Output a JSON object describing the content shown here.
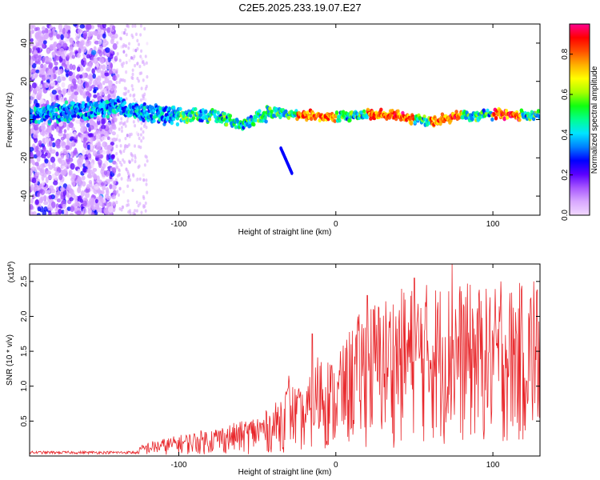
{
  "title": "C2E5.2025.233.19.07.E27",
  "colors": {
    "line": "#e8262a",
    "axis": "#000000",
    "colorbar": [
      "#f2d9ff",
      "#d8a8ff",
      "#a858ff",
      "#5a00ff",
      "#0000ff",
      "#0080ff",
      "#00e5ff",
      "#00ff90",
      "#10ff10",
      "#a8ff00",
      "#ffff00",
      "#ffb000",
      "#ff5000",
      "#ff0000",
      "#ff0090"
    ]
  },
  "chart_data": [
    {
      "type": "heatmap",
      "id": "spectrogram",
      "xlabel": "Height of straight line (km)",
      "ylabel": "Frequency (Hz)",
      "xlim": [
        -195,
        130
      ],
      "ylim": [
        -50,
        50
      ],
      "xticks": [
        -100,
        0,
        100
      ],
      "xtick_labels": [
        "-100",
        "0",
        "100"
      ],
      "yticks": [
        -40,
        -20,
        0,
        20,
        40
      ],
      "ytick_labels": [
        "-40",
        "-20",
        "0",
        "20",
        "40"
      ],
      "colorbar": {
        "label": "Normalized spectral amplitude",
        "range": [
          0,
          0.95
        ],
        "ticks": [
          0,
          0.2,
          0.4,
          0.6,
          0.8
        ],
        "tick_labels": [
          "0.0",
          "0.2",
          "0.4",
          "0.6",
          "0.8"
        ]
      },
      "ridge": {
        "description": "narrow band near 0-5 Hz, broad noisy speckle for heights below -140 km",
        "points": [
          [
            -195,
            2
          ],
          [
            -160,
            5
          ],
          [
            -140,
            7
          ],
          [
            -120,
            4
          ],
          [
            -100,
            2
          ],
          [
            -80,
            2
          ],
          [
            -60,
            -2
          ],
          [
            -40,
            4
          ],
          [
            -20,
            2
          ],
          [
            0,
            2
          ],
          [
            20,
            3
          ],
          [
            40,
            2
          ],
          [
            60,
            -1
          ],
          [
            80,
            2
          ],
          [
            100,
            3
          ],
          [
            120,
            2
          ],
          [
            130,
            2
          ]
        ],
        "peak_segments": [
          [
            -25,
            0
          ],
          [
            20,
            50
          ],
          [
            60,
            80
          ],
          [
            100,
            118
          ]
        ],
        "tail": [
          [
            -35,
            -15
          ],
          [
            -28,
            -28
          ]
        ]
      }
    },
    {
      "type": "line",
      "id": "snr",
      "xlabel": "Height of straight line (km)",
      "ylabel": "SNR (10 * v/v)",
      "multiplier_label": "(x10",
      "multiplier_exp": "4",
      "xlim": [
        -195,
        130
      ],
      "ylim": [
        0,
        2.75
      ],
      "xticks": [
        -100,
        0,
        100
      ],
      "xtick_labels": [
        "-100",
        "0",
        "100"
      ],
      "yticks": [
        0.5,
        1.0,
        1.5,
        2.0,
        2.5
      ],
      "ytick_labels": [
        "0.5",
        "1.0",
        "1.5",
        "2.0",
        "2.5"
      ],
      "envelope": [
        [
          -195,
          0.06
        ],
        [
          -130,
          0.08
        ],
        [
          -120,
          0.2
        ],
        [
          -100,
          0.3
        ],
        [
          -80,
          0.4
        ],
        [
          -60,
          0.5
        ],
        [
          -40,
          0.7
        ],
        [
          -30,
          1.1
        ],
        [
          -20,
          0.9
        ],
        [
          -10,
          1.6
        ],
        [
          0,
          1.3
        ],
        [
          10,
          1.9
        ],
        [
          20,
          2.2
        ],
        [
          40,
          2.4
        ],
        [
          60,
          2.5
        ],
        [
          80,
          2.5
        ],
        [
          100,
          2.4
        ],
        [
          120,
          2.5
        ],
        [
          130,
          2.5
        ]
      ],
      "peaks": [
        [
          -30,
          1.15
        ],
        [
          -15,
          1.75
        ],
        [
          3,
          1.5
        ],
        [
          20,
          2.3
        ],
        [
          50,
          2.55
        ],
        [
          74,
          2.75
        ],
        [
          105,
          2.5
        ],
        [
          126,
          2.5
        ]
      ],
      "samples": 900
    }
  ]
}
